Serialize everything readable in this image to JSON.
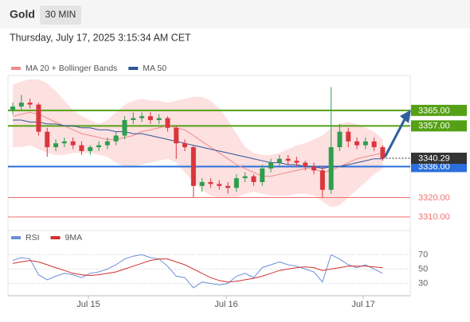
{
  "header": {
    "title": "Gold",
    "timeframe": "30 MIN",
    "datetime": "Thursday, July 17, 2025 3:15:34 AM CET"
  },
  "chart_data": [
    {
      "type": "candlestick",
      "categories": [
        null,
        null,
        null,
        null,
        null,
        null,
        null,
        null,
        null,
        null,
        null,
        null,
        null,
        null,
        null,
        null,
        null,
        null,
        null,
        null,
        null,
        null,
        null,
        null,
        null,
        null,
        null,
        null,
        null,
        null,
        null,
        null,
        null,
        null,
        null,
        null,
        null,
        null,
        null,
        null,
        null,
        null,
        null,
        null
      ],
      "open": [
        3365,
        3367,
        3369,
        3368,
        3354,
        3346,
        3348,
        3349,
        3347,
        3344,
        3346,
        3347,
        3349,
        3352,
        3360,
        3361,
        3362,
        3360,
        3361,
        3356,
        3348,
        3346,
        3326,
        3328,
        3327,
        3326,
        3325,
        3330,
        3331,
        3328,
        3335,
        3338,
        3340,
        3339,
        3338,
        3336,
        3334,
        3324,
        3346,
        3354,
        3349,
        3347,
        3349,
        3346
      ],
      "high": [
        3369,
        3373,
        3371,
        3369,
        3356,
        3350,
        3351,
        3351,
        3349,
        3347,
        3349,
        3351,
        3354,
        3362,
        3364,
        3364,
        3364,
        3363,
        3362,
        3357,
        3350,
        3347,
        3330,
        3330,
        3329,
        3328,
        3332,
        3333,
        3332,
        3337,
        3340,
        3342,
        3342,
        3341,
        3339,
        3338,
        3336,
        3377,
        3358,
        3356,
        3351,
        3351,
        3351,
        3347
      ],
      "low": [
        3363,
        3365,
        3366,
        3352,
        3341,
        3344,
        3346,
        3345,
        3342,
        3342,
        3344,
        3345,
        3347,
        3350,
        3358,
        3359,
        3358,
        3358,
        3354,
        3340,
        3344,
        3320,
        3323,
        3325,
        3324,
        3322,
        3323,
        3328,
        3326,
        3326,
        3333,
        3336,
        3337,
        3336,
        3334,
        3332,
        3320,
        3322,
        3344,
        3346,
        3345,
        3345,
        3344,
        3339
      ],
      "close": [
        3367,
        3369,
        3368,
        3354,
        3346,
        3348,
        3349,
        3347,
        3344,
        3346,
        3347,
        3349,
        3352,
        3360,
        3361,
        3362,
        3360,
        3361,
        3356,
        3348,
        3346,
        3326,
        3328,
        3327,
        3326,
        3325,
        3330,
        3331,
        3328,
        3335,
        3338,
        3340,
        3339,
        3338,
        3336,
        3334,
        3324,
        3346,
        3354,
        3349,
        3347,
        3349,
        3346,
        3340.29
      ],
      "up_color": "#2e9e4f",
      "down_color": "#d9363e",
      "series": [
        {
          "name": "MA 20 + Bollinger Bands",
          "color": "#f08a8a",
          "band_color": "#fde0e0",
          "values": [
            3362,
            3363,
            3364,
            3363,
            3361,
            3359,
            3357,
            3355,
            3353,
            3352,
            3351,
            3350,
            3350,
            3351,
            3352,
            3354,
            3355,
            3356,
            3357,
            3356,
            3355,
            3352,
            3349,
            3346,
            3343,
            3340,
            3337,
            3335,
            3333,
            3331,
            3331,
            3332,
            3333,
            3334,
            3335,
            3335,
            3333,
            3334,
            3336,
            3338,
            3340,
            3341,
            3342,
            3343
          ],
          "upper": [
            3378,
            3380,
            3381,
            3381,
            3379,
            3375,
            3370,
            3365,
            3362,
            3360,
            3358,
            3360,
            3364,
            3368,
            3370,
            3371,
            3370,
            3370,
            3369,
            3370,
            3371,
            3372,
            3372,
            3370,
            3366,
            3360,
            3353,
            3346,
            3343,
            3342,
            3342,
            3343,
            3345,
            3347,
            3348,
            3350,
            3352,
            3356,
            3358,
            3359,
            3358,
            3356,
            3354,
            3350
          ],
          "lower": [
            3346,
            3346,
            3347,
            3345,
            3343,
            3342,
            3342,
            3343,
            3343,
            3343,
            3342,
            3341,
            3338,
            3336,
            3336,
            3337,
            3338,
            3339,
            3340,
            3338,
            3333,
            3328,
            3324,
            3321,
            3320,
            3320,
            3320,
            3322,
            3323,
            3322,
            3321,
            3321,
            3321,
            3322,
            3322,
            3321,
            3318,
            3315,
            3316,
            3320,
            3324,
            3328,
            3332,
            3335
          ]
        },
        {
          "name": "MA 50",
          "color": "#2f5597",
          "values": [
            3360,
            3360,
            3359,
            3359,
            3358,
            3358,
            3357,
            3357,
            3356,
            3356,
            3355,
            3355,
            3354,
            3354,
            3353,
            3353,
            3352,
            3351,
            3350,
            3349,
            3348,
            3347,
            3346,
            3345,
            3344,
            3343,
            3342,
            3341,
            3340,
            3339,
            3338,
            3338,
            3337,
            3337,
            3336,
            3336,
            3335,
            3336,
            3336,
            3337,
            3338,
            3339,
            3340,
            3340
          ]
        }
      ],
      "levels": [
        {
          "value": 3365,
          "label": "3365.00",
          "color": "#55a015",
          "label_style": "box"
        },
        {
          "value": 3357,
          "label": "3357.00",
          "color": "#55a015",
          "label_style": "box"
        },
        {
          "value": 3336,
          "label": "3336.00",
          "color": "#2a6fdb",
          "label_style": "box"
        },
        {
          "value": 3320,
          "label": "3320.00",
          "color": "#f07070",
          "label_style": "text"
        },
        {
          "value": 3310,
          "label": "3310.00",
          "color": "#f07070",
          "label_style": "text"
        }
      ],
      "last_price": {
        "value": 3340.29,
        "label": "3340.29",
        "color": "#333333"
      },
      "xlim": [
        -0.56,
        46.2
      ],
      "ylim": [
        3305,
        3383
      ]
    },
    {
      "type": "line",
      "series": [
        {
          "name": "RSI",
          "color": "#6a8fd8",
          "values": [
            62,
            66,
            64,
            42,
            35,
            40,
            44,
            42,
            38,
            44,
            46,
            50,
            56,
            64,
            68,
            70,
            66,
            64,
            54,
            40,
            38,
            24,
            32,
            30,
            28,
            30,
            40,
            44,
            38,
            52,
            56,
            60,
            56,
            54,
            50,
            46,
            32,
            70,
            64,
            56,
            52,
            56,
            50,
            44
          ]
        },
        {
          "name": "9MA",
          "color": "#d32f2f",
          "values": [
            58,
            60,
            62,
            60,
            56,
            52,
            48,
            44,
            42,
            41,
            42,
            44,
            46,
            50,
            54,
            58,
            62,
            64,
            64,
            60,
            56,
            50,
            44,
            38,
            34,
            32,
            33,
            35,
            37,
            40,
            44,
            48,
            50,
            52,
            53,
            52,
            48,
            50,
            52,
            54,
            54,
            54,
            53,
            52
          ]
        }
      ],
      "xlim": [
        -0.56,
        46.2
      ],
      "ylim": [
        15,
        87
      ],
      "yticks": [
        70,
        50,
        30
      ],
      "grid": true,
      "xticks": [
        {
          "value": 8.79,
          "label": "Jul 15"
        },
        {
          "value": 24.81,
          "label": "Jul 16"
        },
        {
          "value": 40.74,
          "label": "Jul 17"
        }
      ]
    }
  ]
}
